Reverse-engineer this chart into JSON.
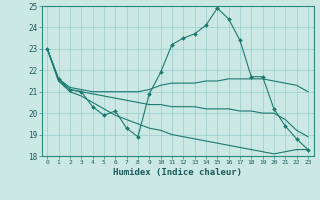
{
  "xlabel": "Humidex (Indice chaleur)",
  "ylabel": "",
  "bg_color": "#cce8e4",
  "grid_color": "#99cccc",
  "line_color": "#1a7a6e",
  "xlim": [
    -0.5,
    23.5
  ],
  "ylim": [
    18,
    25
  ],
  "yticks": [
    18,
    19,
    20,
    21,
    22,
    23,
    24,
    25
  ],
  "xticks": [
    0,
    1,
    2,
    3,
    4,
    5,
    6,
    7,
    8,
    9,
    10,
    11,
    12,
    13,
    14,
    15,
    16,
    17,
    18,
    19,
    20,
    21,
    22,
    23
  ],
  "series": [
    {
      "x": [
        0,
        1,
        2,
        3,
        4,
        5,
        6,
        7,
        8,
        9,
        10,
        11,
        12,
        13,
        14,
        15,
        16,
        17,
        18,
        19,
        20,
        21,
        22,
        23
      ],
      "y": [
        23.0,
        21.6,
        21.1,
        21.0,
        20.3,
        19.9,
        20.1,
        19.3,
        18.9,
        20.9,
        21.9,
        23.2,
        23.5,
        23.7,
        24.1,
        24.9,
        24.4,
        23.4,
        21.7,
        21.7,
        20.2,
        19.4,
        18.8,
        18.3
      ],
      "marker": true
    },
    {
      "x": [
        0,
        1,
        2,
        3,
        4,
        5,
        6,
        7,
        8,
        9,
        10,
        11,
        12,
        13,
        14,
        15,
        16,
        17,
        18,
        19,
        20,
        21,
        22,
        23
      ],
      "y": [
        23.0,
        21.6,
        21.2,
        21.1,
        21.0,
        21.0,
        21.0,
        21.0,
        21.0,
        21.1,
        21.3,
        21.4,
        21.4,
        21.4,
        21.5,
        21.5,
        21.6,
        21.6,
        21.6,
        21.6,
        21.5,
        21.4,
        21.3,
        21.0
      ],
      "marker": false
    },
    {
      "x": [
        0,
        1,
        2,
        3,
        4,
        5,
        6,
        7,
        8,
        9,
        10,
        11,
        12,
        13,
        14,
        15,
        16,
        17,
        18,
        19,
        20,
        21,
        22,
        23
      ],
      "y": [
        23.0,
        21.5,
        21.1,
        21.0,
        20.9,
        20.8,
        20.7,
        20.6,
        20.5,
        20.4,
        20.4,
        20.3,
        20.3,
        20.3,
        20.2,
        20.2,
        20.2,
        20.1,
        20.1,
        20.0,
        20.0,
        19.7,
        19.2,
        18.9
      ],
      "marker": false
    },
    {
      "x": [
        0,
        1,
        2,
        3,
        4,
        5,
        6,
        7,
        8,
        9,
        10,
        11,
        12,
        13,
        14,
        15,
        16,
        17,
        18,
        19,
        20,
        21,
        22,
        23
      ],
      "y": [
        23.0,
        21.5,
        21.0,
        20.8,
        20.5,
        20.2,
        19.9,
        19.7,
        19.5,
        19.3,
        19.2,
        19.0,
        18.9,
        18.8,
        18.7,
        18.6,
        18.5,
        18.4,
        18.3,
        18.2,
        18.1,
        18.2,
        18.3,
        18.3
      ],
      "marker": false
    }
  ]
}
